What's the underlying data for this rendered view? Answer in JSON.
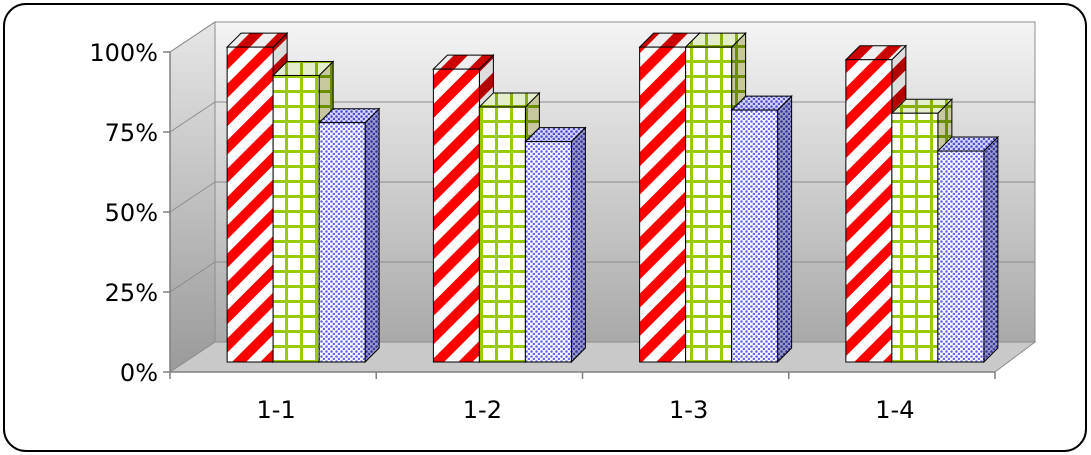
{
  "chart_data": {
    "type": "bar",
    "style": "3d-clustered-column",
    "categories": [
      "1-1",
      "1-2",
      "1-3",
      "1-4"
    ],
    "series": [
      {
        "values": [
          100,
          93,
          100,
          96
        ],
        "color": "#ff0000",
        "pattern": "diagonal-stripes"
      },
      {
        "values": [
          91,
          81,
          100,
          79
        ],
        "color": "#99cc00",
        "pattern": "grid"
      },
      {
        "values": [
          76,
          70,
          80,
          67
        ],
        "color": "#6666ff",
        "pattern": "dots"
      }
    ],
    "yticks": [
      "0%",
      "25%",
      "50%",
      "75%",
      "100%"
    ],
    "ylim": [
      0,
      100
    ],
    "grid": true,
    "legend": "none",
    "title": "",
    "xlabel": "",
    "ylabel": ""
  }
}
